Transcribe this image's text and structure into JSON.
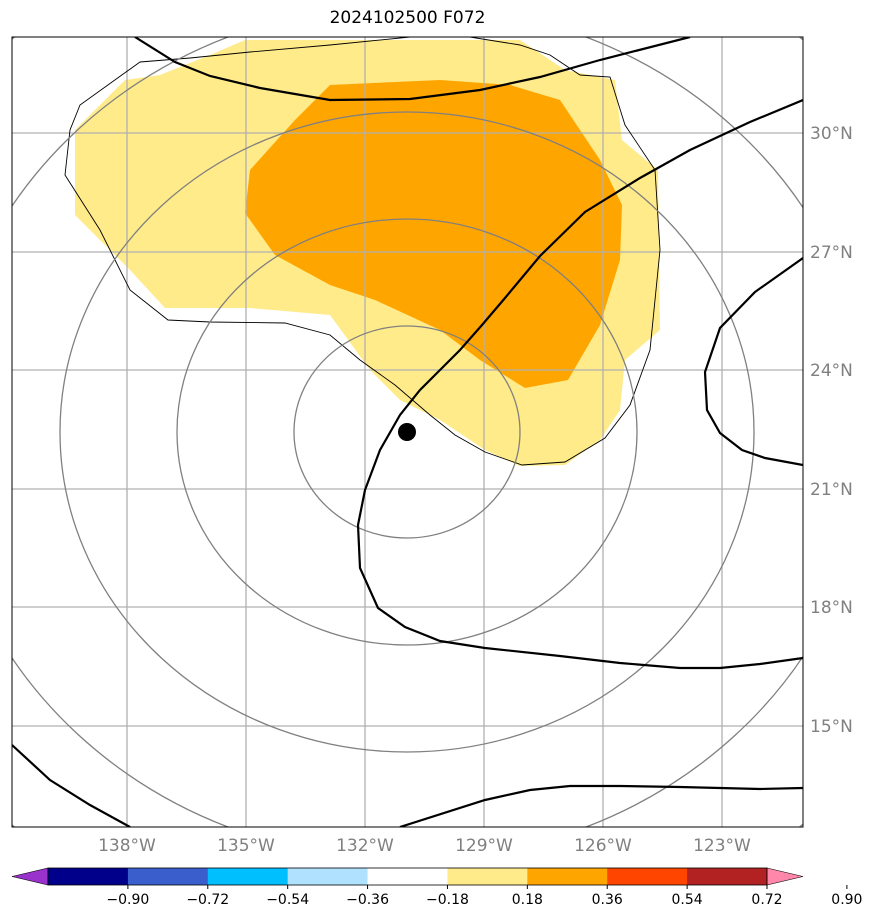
{
  "title": "2024102500 F072",
  "map": {
    "lat_labels": [
      "30°N",
      "27°N",
      "24°N",
      "21°N",
      "18°N",
      "15°N"
    ],
    "lon_labels": [
      "138°W",
      "135°W",
      "132°W",
      "129°W",
      "126°W",
      "123°W"
    ],
    "lat_values": [
      30,
      27,
      24,
      21,
      18,
      15
    ],
    "lon_values": [
      -138,
      -135,
      -132,
      -129,
      -126,
      -123
    ],
    "center_marker": {
      "lon": -131,
      "lat": 22.5
    },
    "fill_colors": {
      "light": "#ffeb8a",
      "medium": "#ffa500"
    },
    "gridline_color": "#b0b0b0",
    "ring_color": "#808080",
    "contour_color": "#000000"
  },
  "colorbar": {
    "ticks": [
      "−0.90",
      "−0.72",
      "−0.54",
      "−0.36",
      "−0.18",
      "0.18",
      "0.36",
      "0.54",
      "0.72",
      "0.90"
    ],
    "colors": [
      "#9932cc",
      "#00008b",
      "#3a5fcd",
      "#00bfff",
      "#b0e2ff",
      "#ffffff",
      "#ffeb8a",
      "#ffa500",
      "#ff4500",
      "#b22222",
      "#ff88aa"
    ]
  }
}
